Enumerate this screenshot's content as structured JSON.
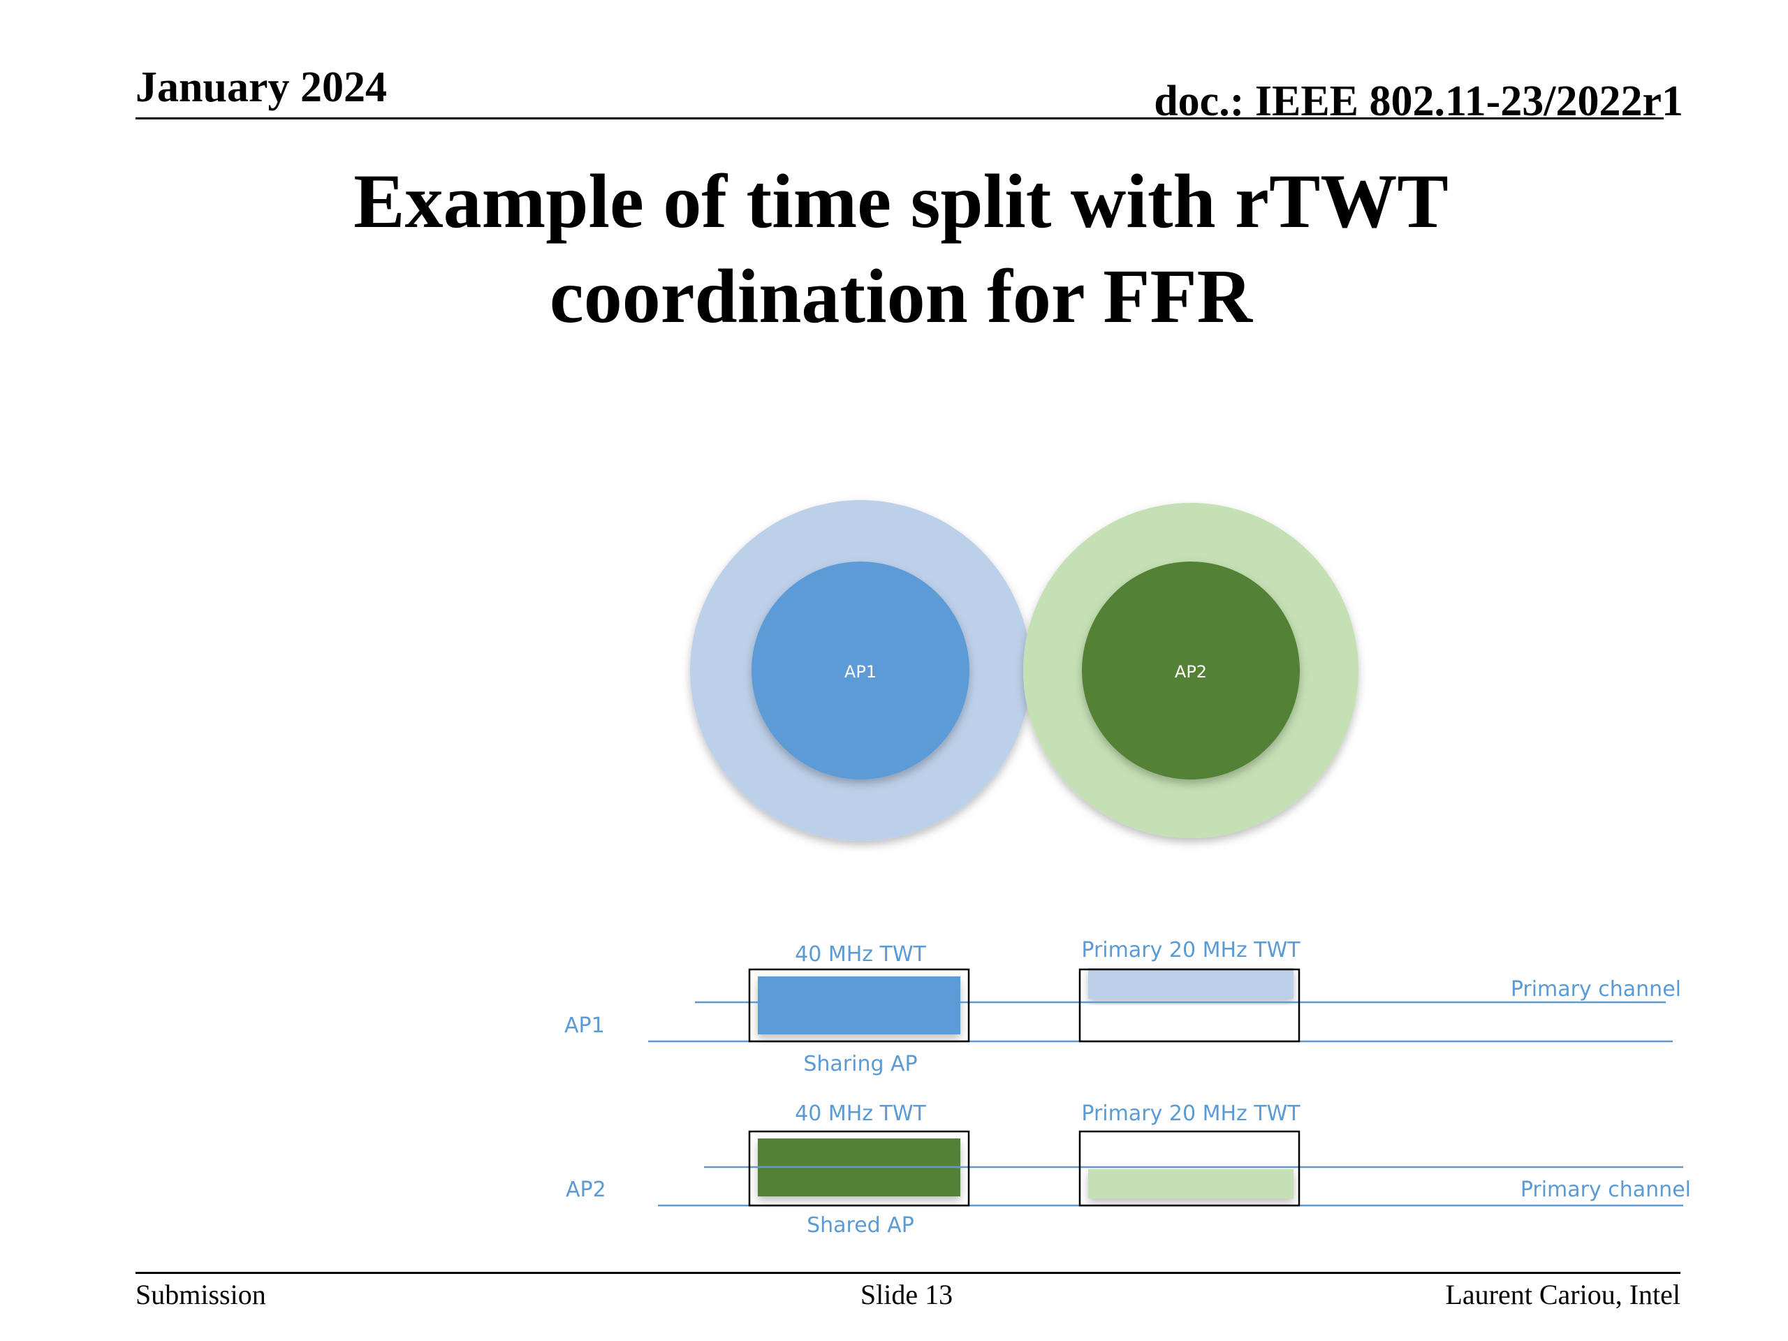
{
  "header": {
    "date": "January 2024",
    "doc": "doc.: IEEE 802.11-23/2022r1"
  },
  "title": {
    "line1": "Example of time split with rTWT",
    "line2": "coordination for FFR"
  },
  "diagram": {
    "ap1_circle_label": "AP1",
    "ap2_circle_label": "AP2",
    "ap1_row_label": "AP1",
    "ap2_row_label": "AP2",
    "ap1_twt1_label": "40 MHz TWT",
    "ap1_twt2_label": "Primary 20 MHz TWT",
    "ap2_twt1_label": "40 MHz TWT",
    "ap2_twt2_label": "Primary 20 MHz TWT",
    "ap1_primary_label": "Primary channel",
    "ap2_primary_label": "Primary channel",
    "ap1_role": "Sharing AP",
    "ap2_role": "Shared AP",
    "colors": {
      "ap1_dark": "#5b9bd5",
      "ap1_light": "#bdd0e9",
      "ap2_dark": "#538135",
      "ap2_light": "#c5e0b4",
      "text_blue": "#5b9bd5",
      "line_blue": "#5b9bd5"
    }
  },
  "footer": {
    "left": "Submission",
    "center": "Slide 13",
    "right": "Laurent Cariou, Intel"
  }
}
